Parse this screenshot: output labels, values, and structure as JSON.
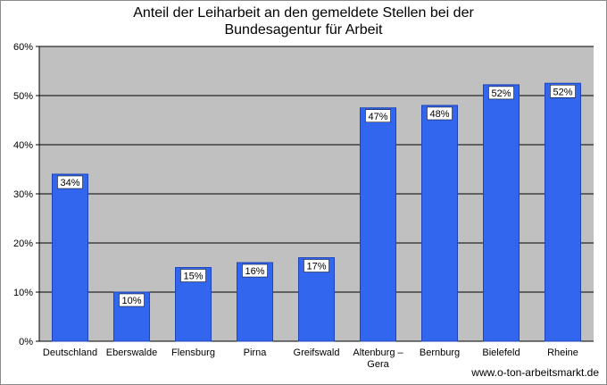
{
  "chart_data": {
    "type": "bar",
    "title_lines": [
      "Anteil der Leiharbeit an  den gemeldete Stellen bei der",
      "Bundesagentur für Arbeit"
    ],
    "categories": [
      "Deutschland",
      "Eberswalde",
      "Flensburg",
      "Pirna",
      "Greifswald",
      "Altenburg – Gera",
      "Bernburg",
      "Bielefeld",
      "Rheine"
    ],
    "category_label_lines": [
      [
        "Deutschland"
      ],
      [
        "Eberswalde"
      ],
      [
        "Flensburg"
      ],
      [
        "Pirna"
      ],
      [
        "Greifswald"
      ],
      [
        "Altenburg –",
        "Gera"
      ],
      [
        "Bernburg"
      ],
      [
        "Bielefeld"
      ],
      [
        "Rheine"
      ]
    ],
    "values": [
      34,
      10,
      15,
      16,
      17,
      47.5,
      48,
      52.2,
      52.5
    ],
    "data_labels": [
      "34%",
      "10%",
      "15%",
      "16%",
      "17%",
      "47%",
      "48%",
      "52%",
      "52%"
    ],
    "yticks": [
      0,
      10,
      20,
      30,
      40,
      50,
      60
    ],
    "ytick_labels": [
      "0%",
      "10%",
      "20%",
      "30%",
      "40%",
      "50%",
      "60%"
    ],
    "ylim": [
      0,
      60
    ],
    "grid": true,
    "legend": "none",
    "bar_color": "#3366ee",
    "plot_background": "#c0c0c0"
  },
  "source": "www.o-ton-arbeitsmarkt.de"
}
